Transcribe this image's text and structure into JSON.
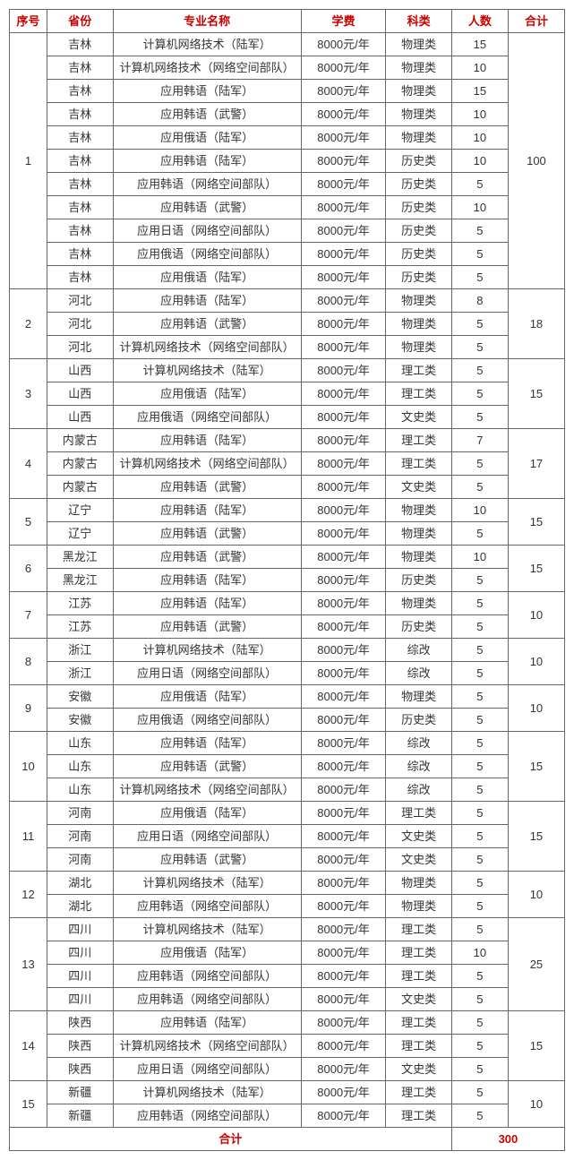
{
  "headers": {
    "seq": "序号",
    "province": "省份",
    "major": "专业名称",
    "fee": "学费",
    "subject": "科类",
    "count": "人数",
    "total": "合计"
  },
  "groups": [
    {
      "seq": "1",
      "total": "100",
      "rows": [
        {
          "province": "吉林",
          "major": "计算机网络技术（陆军）",
          "fee": "8000元/年",
          "subject": "物理类",
          "count": "15"
        },
        {
          "province": "吉林",
          "major": "计算机网络技术（网络空间部队）",
          "fee": "8000元/年",
          "subject": "物理类",
          "count": "10"
        },
        {
          "province": "吉林",
          "major": "应用韩语（陆军）",
          "fee": "8000元/年",
          "subject": "物理类",
          "count": "15"
        },
        {
          "province": "吉林",
          "major": "应用韩语（武警）",
          "fee": "8000元/年",
          "subject": "物理类",
          "count": "10"
        },
        {
          "province": "吉林",
          "major": "应用俄语（陆军）",
          "fee": "8000元/年",
          "subject": "物理类",
          "count": "10"
        },
        {
          "province": "吉林",
          "major": "应用韩语（陆军）",
          "fee": "8000元/年",
          "subject": "历史类",
          "count": "10"
        },
        {
          "province": "吉林",
          "major": "应用韩语（网络空间部队）",
          "fee": "8000元/年",
          "subject": "历史类",
          "count": "5"
        },
        {
          "province": "吉林",
          "major": "应用韩语（武警）",
          "fee": "8000元/年",
          "subject": "历史类",
          "count": "10"
        },
        {
          "province": "吉林",
          "major": "应用日语（网络空间部队）",
          "fee": "8000元/年",
          "subject": "历史类",
          "count": "5"
        },
        {
          "province": "吉林",
          "major": "应用俄语（网络空间部队）",
          "fee": "8000元/年",
          "subject": "历史类",
          "count": "5"
        },
        {
          "province": "吉林",
          "major": "应用俄语（陆军）",
          "fee": "8000元/年",
          "subject": "历史类",
          "count": "5"
        }
      ]
    },
    {
      "seq": "2",
      "total": "18",
      "rows": [
        {
          "province": "河北",
          "major": "应用韩语（陆军）",
          "fee": "8000元/年",
          "subject": "物理类",
          "count": "8"
        },
        {
          "province": "河北",
          "major": "应用韩语（武警）",
          "fee": "8000元/年",
          "subject": "物理类",
          "count": "5"
        },
        {
          "province": "河北",
          "major": "计算机网络技术（网络空间部队）",
          "fee": "8000元/年",
          "subject": "物理类",
          "count": "5"
        }
      ]
    },
    {
      "seq": "3",
      "total": "15",
      "rows": [
        {
          "province": "山西",
          "major": "计算机网络技术（陆军）",
          "fee": "8000元/年",
          "subject": "理工类",
          "count": "5"
        },
        {
          "province": "山西",
          "major": "应用俄语（陆军）",
          "fee": "8000元/年",
          "subject": "理工类",
          "count": "5"
        },
        {
          "province": "山西",
          "major": "应用俄语（网络空间部队）",
          "fee": "8000元/年",
          "subject": "文史类",
          "count": "5"
        }
      ]
    },
    {
      "seq": "4",
      "total": "17",
      "rows": [
        {
          "province": "内蒙古",
          "major": "应用韩语（陆军）",
          "fee": "8000元/年",
          "subject": "理工类",
          "count": "7"
        },
        {
          "province": "内蒙古",
          "major": "计算机网络技术（网络空间部队）",
          "fee": "8000元/年",
          "subject": "理工类",
          "count": "5"
        },
        {
          "province": "内蒙古",
          "major": "应用韩语（武警）",
          "fee": "8000元/年",
          "subject": "文史类",
          "count": "5"
        }
      ]
    },
    {
      "seq": "5",
      "total": "15",
      "rows": [
        {
          "province": "辽宁",
          "major": "应用韩语（陆军）",
          "fee": "8000元/年",
          "subject": "物理类",
          "count": "10"
        },
        {
          "province": "辽宁",
          "major": "应用韩语（武警）",
          "fee": "8000元/年",
          "subject": "物理类",
          "count": "5"
        }
      ]
    },
    {
      "seq": "6",
      "total": "15",
      "rows": [
        {
          "province": "黑龙江",
          "major": "应用韩语（武警）",
          "fee": "8000元/年",
          "subject": "物理类",
          "count": "10"
        },
        {
          "province": "黑龙江",
          "major": "应用韩语（陆军）",
          "fee": "8000元/年",
          "subject": "历史类",
          "count": "5"
        }
      ]
    },
    {
      "seq": "7",
      "total": "10",
      "rows": [
        {
          "province": "江苏",
          "major": "应用韩语（陆军）",
          "fee": "8000元/年",
          "subject": "物理类",
          "count": "5"
        },
        {
          "province": "江苏",
          "major": "应用韩语（武警）",
          "fee": "8000元/年",
          "subject": "历史类",
          "count": "5"
        }
      ]
    },
    {
      "seq": "8",
      "total": "10",
      "rows": [
        {
          "province": "浙江",
          "major": "计算机网络技术（陆军）",
          "fee": "8000元/年",
          "subject": "综改",
          "count": "5"
        },
        {
          "province": "浙江",
          "major": "应用日语（网络空间部队）",
          "fee": "8000元/年",
          "subject": "综改",
          "count": "5"
        }
      ]
    },
    {
      "seq": "9",
      "total": "10",
      "rows": [
        {
          "province": "安徽",
          "major": "应用俄语（陆军）",
          "fee": "8000元/年",
          "subject": "物理类",
          "count": "5"
        },
        {
          "province": "安徽",
          "major": "应用俄语（网络空间部队）",
          "fee": "8000元/年",
          "subject": "历史类",
          "count": "5"
        }
      ]
    },
    {
      "seq": "10",
      "total": "15",
      "rows": [
        {
          "province": "山东",
          "major": "应用韩语（陆军）",
          "fee": "8000元/年",
          "subject": "综改",
          "count": "5"
        },
        {
          "province": "山东",
          "major": "应用韩语（武警）",
          "fee": "8000元/年",
          "subject": "综改",
          "count": "5"
        },
        {
          "province": "山东",
          "major": "计算机网络技术（网络空间部队）",
          "fee": "8000元/年",
          "subject": "综改",
          "count": "5"
        }
      ]
    },
    {
      "seq": "11",
      "total": "15",
      "rows": [
        {
          "province": "河南",
          "major": "应用俄语（陆军）",
          "fee": "8000元/年",
          "subject": "理工类",
          "count": "5"
        },
        {
          "province": "河南",
          "major": "应用日语（网络空间部队）",
          "fee": "8000元/年",
          "subject": "文史类",
          "count": "5"
        },
        {
          "province": "河南",
          "major": "应用韩语（武警）",
          "fee": "8000元/年",
          "subject": "文史类",
          "count": "5"
        }
      ]
    },
    {
      "seq": "12",
      "total": "10",
      "rows": [
        {
          "province": "湖北",
          "major": "计算机网络技术（陆军）",
          "fee": "8000元/年",
          "subject": "物理类",
          "count": "5"
        },
        {
          "province": "湖北",
          "major": "应用韩语（网络空间部队）",
          "fee": "8000元/年",
          "subject": "物理类",
          "count": "5"
        }
      ]
    },
    {
      "seq": "13",
      "total": "25",
      "rows": [
        {
          "province": "四川",
          "major": "计算机网络技术（陆军）",
          "fee": "8000元/年",
          "subject": "理工类",
          "count": "5"
        },
        {
          "province": "四川",
          "major": "应用俄语（陆军）",
          "fee": "8000元/年",
          "subject": "理工类",
          "count": "10"
        },
        {
          "province": "四川",
          "major": "应用韩语（网络空间部队）",
          "fee": "8000元/年",
          "subject": "理工类",
          "count": "5"
        },
        {
          "province": "四川",
          "major": "应用韩语（网络空间部队）",
          "fee": "8000元/年",
          "subject": "文史类",
          "count": "5"
        }
      ]
    },
    {
      "seq": "14",
      "total": "15",
      "rows": [
        {
          "province": "陕西",
          "major": "应用韩语（陆军）",
          "fee": "8000元/年",
          "subject": "理工类",
          "count": "5"
        },
        {
          "province": "陕西",
          "major": "计算机网络技术（网络空间部队）",
          "fee": "8000元/年",
          "subject": "理工类",
          "count": "5"
        },
        {
          "province": "陕西",
          "major": "应用日语（网络空间部队）",
          "fee": "8000元/年",
          "subject": "文史类",
          "count": "5"
        }
      ]
    },
    {
      "seq": "15",
      "total": "10",
      "rows": [
        {
          "province": "新疆",
          "major": "计算机网络技术（陆军）",
          "fee": "8000元/年",
          "subject": "理工类",
          "count": "5"
        },
        {
          "province": "新疆",
          "major": "应用韩语（网络空间部队）",
          "fee": "8000元/年",
          "subject": "理工类",
          "count": "5"
        }
      ]
    }
  ],
  "footer": {
    "label": "合计",
    "value": "300"
  },
  "style": {
    "header_color": "#cc0000",
    "border_color": "#666666",
    "text_color": "#333333",
    "background": "#ffffff",
    "font_size_pt": 10
  }
}
